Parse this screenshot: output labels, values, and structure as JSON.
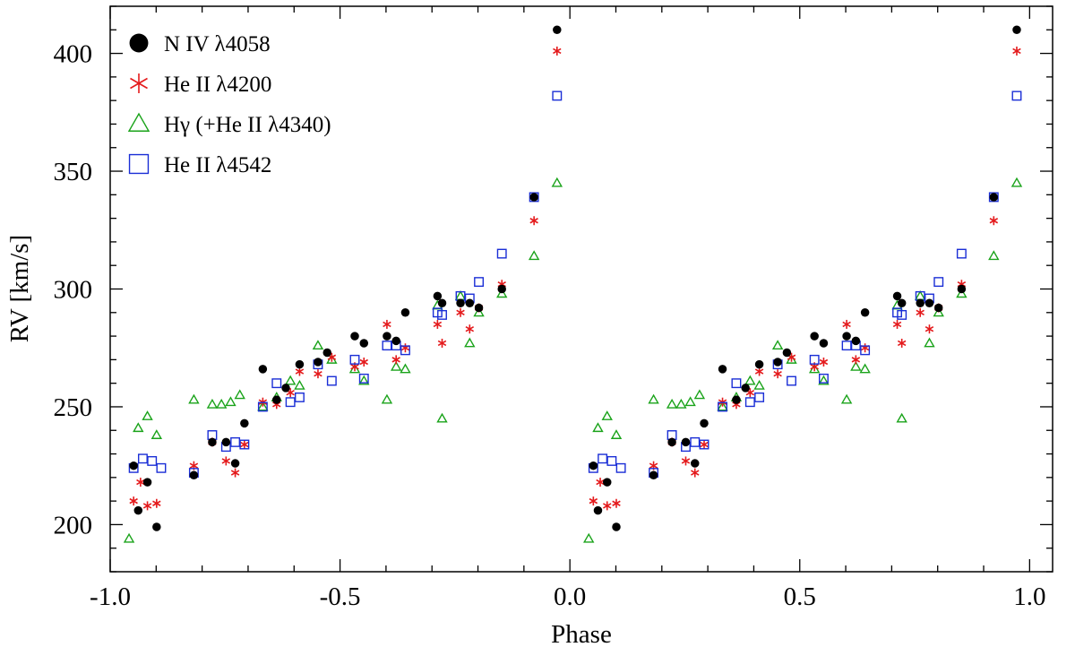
{
  "chart_data": {
    "type": "scatter",
    "title": "",
    "xlabel": "Phase",
    "ylabel": "RV [km/s]",
    "xlim": [
      -1.0,
      1.05
    ],
    "ylim": [
      180,
      420
    ],
    "xticks": [
      -1.0,
      -0.5,
      0.0,
      0.5,
      1.0
    ],
    "xtick_labels": [
      "-1.0",
      "-0.5",
      "0.0",
      "0.5",
      "1.0"
    ],
    "yticks": [
      200,
      250,
      300,
      350,
      400
    ],
    "ytick_labels": [
      "200",
      "250",
      "300",
      "350",
      "400"
    ],
    "grid": false,
    "legend_position": "top-left",
    "series": [
      {
        "name": "N IV λ4058",
        "marker": "filled-circle",
        "color": "#000000",
        "points": [
          [
            0.051,
            225
          ],
          [
            0.061,
            206
          ],
          [
            0.081,
            218
          ],
          [
            0.101,
            199
          ],
          [
            0.182,
            221
          ],
          [
            0.222,
            235
          ],
          [
            0.252,
            235
          ],
          [
            0.272,
            226
          ],
          [
            0.292,
            243
          ],
          [
            0.332,
            266
          ],
          [
            0.362,
            253
          ],
          [
            0.382,
            258
          ],
          [
            0.412,
            268
          ],
          [
            0.452,
            269
          ],
          [
            0.472,
            273
          ],
          [
            0.532,
            280
          ],
          [
            0.552,
            277
          ],
          [
            0.602,
            280
          ],
          [
            0.622,
            278
          ],
          [
            0.642,
            290
          ],
          [
            0.712,
            297
          ],
          [
            0.722,
            294
          ],
          [
            0.762,
            294
          ],
          [
            0.782,
            294
          ],
          [
            0.802,
            292
          ],
          [
            0.852,
            300
          ],
          [
            0.922,
            339
          ],
          [
            0.972,
            410
          ],
          [
            -0.949,
            225
          ],
          [
            -0.939,
            206
          ],
          [
            -0.919,
            218
          ],
          [
            -0.899,
            199
          ],
          [
            -0.818,
            221
          ],
          [
            -0.778,
            235
          ],
          [
            -0.748,
            235
          ],
          [
            -0.728,
            226
          ],
          [
            -0.708,
            243
          ],
          [
            -0.668,
            266
          ],
          [
            -0.638,
            253
          ],
          [
            -0.618,
            258
          ],
          [
            -0.588,
            268
          ],
          [
            -0.548,
            269
          ],
          [
            -0.528,
            273
          ],
          [
            -0.468,
            280
          ],
          [
            -0.448,
            277
          ],
          [
            -0.398,
            280
          ],
          [
            -0.378,
            278
          ],
          [
            -0.358,
            290
          ],
          [
            -0.288,
            297
          ],
          [
            -0.278,
            294
          ],
          [
            -0.238,
            294
          ],
          [
            -0.218,
            294
          ],
          [
            -0.198,
            292
          ],
          [
            -0.148,
            300
          ],
          [
            -0.078,
            339
          ],
          [
            -0.028,
            410
          ]
        ]
      },
      {
        "name": "He II λ4200",
        "marker": "asterisk",
        "color": "#e41a1c",
        "points": [
          [
            0.051,
            210
          ],
          [
            0.066,
            218
          ],
          [
            0.081,
            208
          ],
          [
            0.101,
            209
          ],
          [
            0.182,
            225
          ],
          [
            0.222,
            235
          ],
          [
            0.252,
            227
          ],
          [
            0.272,
            222
          ],
          [
            0.292,
            234
          ],
          [
            0.332,
            252
          ],
          [
            0.362,
            251
          ],
          [
            0.392,
            256
          ],
          [
            0.412,
            265
          ],
          [
            0.452,
            264
          ],
          [
            0.482,
            271
          ],
          [
            0.532,
            267
          ],
          [
            0.552,
            269
          ],
          [
            0.602,
            285
          ],
          [
            0.622,
            270
          ],
          [
            0.642,
            275
          ],
          [
            0.712,
            285
          ],
          [
            0.722,
            277
          ],
          [
            0.762,
            290
          ],
          [
            0.782,
            283
          ],
          [
            0.802,
            292
          ],
          [
            0.852,
            302
          ],
          [
            0.922,
            329
          ],
          [
            0.972,
            401
          ],
          [
            -0.949,
            210
          ],
          [
            -0.934,
            218
          ],
          [
            -0.919,
            208
          ],
          [
            -0.899,
            209
          ],
          [
            -0.818,
            225
          ],
          [
            -0.778,
            235
          ],
          [
            -0.748,
            227
          ],
          [
            -0.728,
            222
          ],
          [
            -0.708,
            234
          ],
          [
            -0.668,
            252
          ],
          [
            -0.638,
            251
          ],
          [
            -0.608,
            256
          ],
          [
            -0.588,
            265
          ],
          [
            -0.548,
            264
          ],
          [
            -0.518,
            271
          ],
          [
            -0.468,
            267
          ],
          [
            -0.448,
            269
          ],
          [
            -0.398,
            285
          ],
          [
            -0.378,
            270
          ],
          [
            -0.358,
            275
          ],
          [
            -0.288,
            285
          ],
          [
            -0.278,
            277
          ],
          [
            -0.238,
            290
          ],
          [
            -0.218,
            283
          ],
          [
            -0.198,
            292
          ],
          [
            -0.148,
            302
          ],
          [
            -0.078,
            329
          ],
          [
            -0.028,
            401
          ]
        ]
      },
      {
        "name": "Hγ (+He II λ4340)",
        "marker": "open-triangle",
        "color": "#1aa31a",
        "points": [
          [
            0.041,
            194
          ],
          [
            0.061,
            241
          ],
          [
            0.081,
            246
          ],
          [
            0.101,
            238
          ],
          [
            0.182,
            253
          ],
          [
            0.222,
            251
          ],
          [
            0.242,
            251
          ],
          [
            0.262,
            252
          ],
          [
            0.282,
            255
          ],
          [
            0.332,
            250
          ],
          [
            0.362,
            254
          ],
          [
            0.392,
            261
          ],
          [
            0.412,
            259
          ],
          [
            0.452,
            276
          ],
          [
            0.482,
            270
          ],
          [
            0.532,
            266
          ],
          [
            0.552,
            261
          ],
          [
            0.602,
            253
          ],
          [
            0.622,
            267
          ],
          [
            0.642,
            266
          ],
          [
            0.712,
            293
          ],
          [
            0.722,
            245
          ],
          [
            0.762,
            297
          ],
          [
            0.782,
            277
          ],
          [
            0.802,
            290
          ],
          [
            0.852,
            298
          ],
          [
            0.922,
            314
          ],
          [
            0.972,
            345
          ],
          [
            -0.959,
            194
          ],
          [
            -0.939,
            241
          ],
          [
            -0.919,
            246
          ],
          [
            -0.899,
            238
          ],
          [
            -0.818,
            253
          ],
          [
            -0.778,
            251
          ],
          [
            -0.758,
            251
          ],
          [
            -0.738,
            252
          ],
          [
            -0.718,
            255
          ],
          [
            -0.668,
            250
          ],
          [
            -0.638,
            254
          ],
          [
            -0.608,
            261
          ],
          [
            -0.588,
            259
          ],
          [
            -0.548,
            276
          ],
          [
            -0.518,
            270
          ],
          [
            -0.468,
            266
          ],
          [
            -0.448,
            261
          ],
          [
            -0.398,
            253
          ],
          [
            -0.378,
            267
          ],
          [
            -0.358,
            266
          ],
          [
            -0.288,
            293
          ],
          [
            -0.278,
            245
          ],
          [
            -0.238,
            297
          ],
          [
            -0.218,
            277
          ],
          [
            -0.198,
            290
          ],
          [
            -0.148,
            298
          ],
          [
            -0.078,
            314
          ],
          [
            -0.028,
            345
          ]
        ]
      },
      {
        "name": "He II λ4542",
        "marker": "open-square",
        "color": "#1a2ed6",
        "points": [
          [
            0.051,
            224
          ],
          [
            0.071,
            228
          ],
          [
            0.091,
            227
          ],
          [
            0.111,
            224
          ],
          [
            0.182,
            222
          ],
          [
            0.222,
            238
          ],
          [
            0.252,
            233
          ],
          [
            0.272,
            235
          ],
          [
            0.292,
            234
          ],
          [
            0.332,
            250
          ],
          [
            0.362,
            260
          ],
          [
            0.392,
            252
          ],
          [
            0.412,
            254
          ],
          [
            0.452,
            268
          ],
          [
            0.482,
            261
          ],
          [
            0.532,
            270
          ],
          [
            0.552,
            262
          ],
          [
            0.602,
            276
          ],
          [
            0.622,
            276
          ],
          [
            0.642,
            274
          ],
          [
            0.712,
            290
          ],
          [
            0.722,
            289
          ],
          [
            0.762,
            297
          ],
          [
            0.782,
            296
          ],
          [
            0.802,
            303
          ],
          [
            0.852,
            315
          ],
          [
            0.922,
            339
          ],
          [
            0.972,
            382
          ],
          [
            -0.949,
            224
          ],
          [
            -0.929,
            228
          ],
          [
            -0.909,
            227
          ],
          [
            -0.889,
            224
          ],
          [
            -0.818,
            222
          ],
          [
            -0.778,
            238
          ],
          [
            -0.748,
            233
          ],
          [
            -0.728,
            235
          ],
          [
            -0.708,
            234
          ],
          [
            -0.668,
            250
          ],
          [
            -0.638,
            260
          ],
          [
            -0.608,
            252
          ],
          [
            -0.588,
            254
          ],
          [
            -0.548,
            268
          ],
          [
            -0.518,
            261
          ],
          [
            -0.468,
            270
          ],
          [
            -0.448,
            262
          ],
          [
            -0.398,
            276
          ],
          [
            -0.378,
            276
          ],
          [
            -0.358,
            274
          ],
          [
            -0.288,
            290
          ],
          [
            -0.278,
            289
          ],
          [
            -0.238,
            297
          ],
          [
            -0.218,
            296
          ],
          [
            -0.198,
            303
          ],
          [
            -0.148,
            315
          ],
          [
            -0.078,
            339
          ],
          [
            -0.028,
            382
          ]
        ]
      }
    ]
  }
}
